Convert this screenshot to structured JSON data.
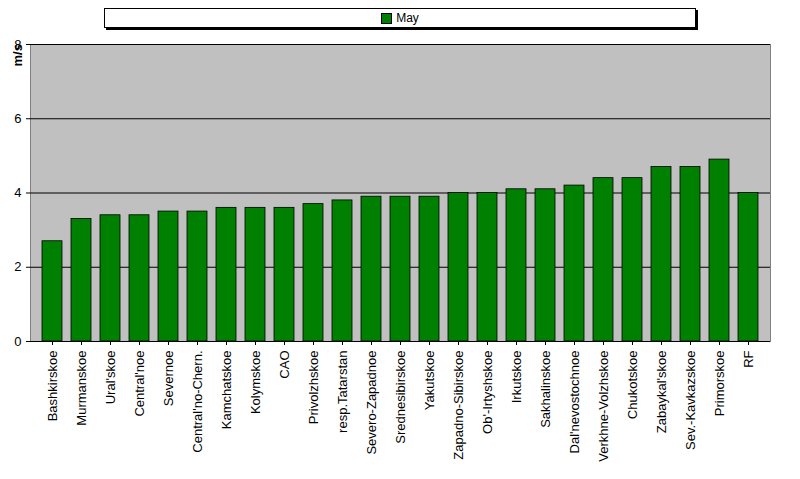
{
  "chart_data": {
    "type": "bar",
    "y_label": "m/s",
    "categories": [
      "Bashkirskoe",
      "Murmanskoe",
      "Ural'skoe",
      "Central'noe",
      "Severnoe",
      "Central'no-Chern.",
      "Kamchatskoe",
      "Kolymskoe",
      "CAO",
      "Privolzhskoe",
      "resp.Tatarstan",
      "Severo-Zapadnoe",
      "Srednesibirskoe",
      "Yakutskoe",
      "Zapadno-Sibirskoe",
      "Ob'-Irtyshskoe",
      "Irkutskoe",
      "Sakhalinskoe",
      "Dal'nevostochnoe",
      "Verkhne-Volzhskoe",
      "Chukotskoe",
      "Zabaykal'skoe",
      "Sev.-Kavkazskoe",
      "Primorskoe",
      "RF"
    ],
    "series": [
      {
        "name": "May",
        "color": "#008000",
        "values": [
          2.7,
          3.3,
          3.4,
          3.4,
          3.5,
          3.5,
          3.6,
          3.6,
          3.6,
          3.7,
          3.8,
          3.9,
          3.9,
          3.9,
          4.0,
          4.0,
          4.1,
          4.1,
          4.2,
          4.4,
          4.4,
          4.7,
          4.7,
          4.9,
          4.0
        ]
      }
    ],
    "ylim": [
      0,
      8
    ],
    "yticks": [
      0,
      2,
      4,
      6,
      8
    ],
    "grid": true,
    "legend": "top"
  }
}
